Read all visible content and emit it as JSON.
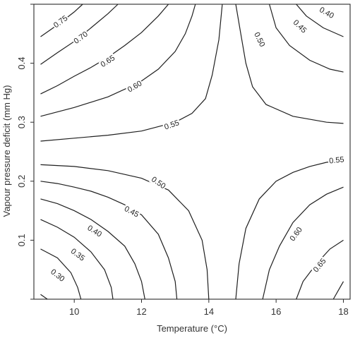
{
  "chart_data": {
    "type": "contour",
    "title": "",
    "xlabel": "Temperature (°C)",
    "ylabel": "Vapour pressure deficit (mm Hg)",
    "xlim": [
      8.8,
      18.2
    ],
    "ylim": [
      0,
      0.5
    ],
    "x_ticks": [
      10,
      12,
      14,
      16,
      18
    ],
    "y_ticks": [
      0.1,
      0.2,
      0.3,
      0.4
    ],
    "y_tick_marks": [
      0,
      0.1,
      0.2,
      0.3,
      0.4,
      0.5
    ],
    "contours": [
      {
        "label": "0.75",
        "label_at": [
          9.6,
          0.47
        ],
        "points": [
          [
            9.0,
            0.445
          ],
          [
            9.5,
            0.465
          ],
          [
            10.0,
            0.487
          ],
          [
            10.25,
            0.5
          ]
        ]
      },
      {
        "label": "0.70",
        "label_at": [
          10.2,
          0.443
        ],
        "points": [
          [
            9.0,
            0.398
          ],
          [
            9.5,
            0.418
          ],
          [
            10.0,
            0.437
          ],
          [
            10.5,
            0.46
          ],
          [
            11.0,
            0.484
          ],
          [
            11.3,
            0.5
          ]
        ]
      },
      {
        "label": "0.65",
        "label_at": [
          11.0,
          0.403
        ],
        "points": [
          [
            9.0,
            0.348
          ],
          [
            9.5,
            0.362
          ],
          [
            10.0,
            0.378
          ],
          [
            10.5,
            0.393
          ],
          [
            11.0,
            0.41
          ],
          [
            11.5,
            0.43
          ],
          [
            12.0,
            0.452
          ],
          [
            12.5,
            0.48
          ],
          [
            12.8,
            0.5
          ]
        ]
      },
      {
        "label": "0.60",
        "label_at": [
          11.8,
          0.36
        ],
        "points": [
          [
            9.0,
            0.31
          ],
          [
            10.0,
            0.325
          ],
          [
            11.0,
            0.343
          ],
          [
            11.5,
            0.356
          ],
          [
            12.0,
            0.37
          ],
          [
            12.5,
            0.39
          ],
          [
            13.0,
            0.42
          ],
          [
            13.3,
            0.45
          ],
          [
            13.5,
            0.48
          ],
          [
            13.6,
            0.5
          ]
        ]
      },
      {
        "label": "0.55",
        "label_at": [
          12.9,
          0.295
        ],
        "points": [
          [
            9.0,
            0.268
          ],
          [
            10.0,
            0.273
          ],
          [
            11.0,
            0.278
          ],
          [
            12.0,
            0.285
          ],
          [
            13.0,
            0.3
          ],
          [
            13.5,
            0.315
          ],
          [
            13.9,
            0.34
          ],
          [
            14.1,
            0.38
          ],
          [
            14.3,
            0.44
          ],
          [
            14.4,
            0.5
          ]
        ]
      },
      {
        "label": "0.50",
        "label_at": [
          12.5,
          0.197
        ],
        "points": [
          [
            9.0,
            0.228
          ],
          [
            10.0,
            0.225
          ],
          [
            11.0,
            0.218
          ],
          [
            12.0,
            0.205
          ],
          [
            12.8,
            0.185
          ],
          [
            13.4,
            0.15
          ],
          [
            13.8,
            0.1
          ],
          [
            13.95,
            0.05
          ],
          [
            14.0,
            0.0
          ]
        ]
      },
      {
        "label": "0.45",
        "label_at": [
          11.7,
          0.148
        ],
        "points": [
          [
            9.0,
            0.2
          ],
          [
            9.5,
            0.196
          ],
          [
            10.0,
            0.19
          ],
          [
            10.5,
            0.183
          ],
          [
            11.0,
            0.173
          ],
          [
            11.5,
            0.16
          ],
          [
            12.0,
            0.143
          ],
          [
            12.5,
            0.11
          ],
          [
            12.8,
            0.07
          ],
          [
            13.0,
            0.03
          ],
          [
            13.05,
            0.0
          ]
        ]
      },
      {
        "label": "0.40",
        "label_at": [
          10.6,
          0.115
        ],
        "points": [
          [
            9.0,
            0.17
          ],
          [
            9.5,
            0.162
          ],
          [
            10.0,
            0.15
          ],
          [
            10.5,
            0.135
          ],
          [
            11.0,
            0.115
          ],
          [
            11.5,
            0.09
          ],
          [
            11.8,
            0.06
          ],
          [
            12.0,
            0.03
          ],
          [
            12.1,
            0.0
          ]
        ]
      },
      {
        "label": "0.35",
        "label_at": [
          10.1,
          0.075
        ],
        "points": [
          [
            9.0,
            0.135
          ],
          [
            9.5,
            0.122
          ],
          [
            10.0,
            0.105
          ],
          [
            10.5,
            0.08
          ],
          [
            10.9,
            0.05
          ],
          [
            11.1,
            0.02
          ],
          [
            11.15,
            0.0
          ]
        ]
      },
      {
        "label": "0.30",
        "label_at": [
          9.5,
          0.04
        ],
        "points": [
          [
            9.0,
            0.085
          ],
          [
            9.5,
            0.07
          ],
          [
            9.9,
            0.045
          ],
          [
            10.1,
            0.02
          ],
          [
            10.2,
            0.0
          ]
        ]
      },
      {
        "label": "",
        "label_at": null,
        "points": [
          [
            9.0,
            0.008
          ],
          [
            9.2,
            0.0
          ]
        ]
      },
      {
        "label": "0.50",
        "label_at": [
          15.5,
          0.44
        ],
        "points": [
          [
            14.8,
            0.5
          ],
          [
            14.95,
            0.45
          ],
          [
            15.1,
            0.4
          ],
          [
            15.3,
            0.36
          ],
          [
            15.7,
            0.33
          ],
          [
            16.5,
            0.31
          ],
          [
            17.5,
            0.3
          ],
          [
            18.0,
            0.298
          ]
        ]
      },
      {
        "label": "0.45",
        "label_at": [
          16.7,
          0.462
        ],
        "points": [
          [
            15.8,
            0.5
          ],
          [
            16.0,
            0.46
          ],
          [
            16.4,
            0.43
          ],
          [
            17.0,
            0.405
          ],
          [
            17.6,
            0.39
          ],
          [
            18.0,
            0.385
          ]
        ]
      },
      {
        "label": "0.40",
        "label_at": [
          17.5,
          0.485
        ],
        "points": [
          [
            16.6,
            0.5
          ],
          [
            16.9,
            0.48
          ],
          [
            17.4,
            0.46
          ],
          [
            18.0,
            0.445
          ]
        ]
      },
      {
        "label": "0.55",
        "label_at": [
          17.8,
          0.235
        ],
        "points": [
          [
            14.8,
            0.0
          ],
          [
            14.9,
            0.06
          ],
          [
            15.1,
            0.12
          ],
          [
            15.5,
            0.17
          ],
          [
            16.0,
            0.2
          ],
          [
            16.5,
            0.215
          ],
          [
            17.0,
            0.225
          ],
          [
            17.5,
            0.232
          ],
          [
            18.0,
            0.235
          ]
        ]
      },
      {
        "label": "0.60",
        "label_at": [
          16.6,
          0.11
        ],
        "points": [
          [
            15.6,
            0.0
          ],
          [
            15.8,
            0.05
          ],
          [
            16.1,
            0.09
          ],
          [
            16.5,
            0.13
          ],
          [
            17.0,
            0.16
          ],
          [
            17.5,
            0.178
          ],
          [
            18.0,
            0.19
          ]
        ]
      },
      {
        "label": "0.65",
        "label_at": [
          17.3,
          0.057
        ],
        "points": [
          [
            16.6,
            0.0
          ],
          [
            16.8,
            0.03
          ],
          [
            17.2,
            0.06
          ],
          [
            17.6,
            0.085
          ],
          [
            18.0,
            0.1
          ]
        ]
      },
      {
        "label": "",
        "label_at": null,
        "points": [
          [
            17.7,
            0.0
          ],
          [
            17.9,
            0.02
          ],
          [
            18.0,
            0.03
          ]
        ]
      }
    ]
  }
}
